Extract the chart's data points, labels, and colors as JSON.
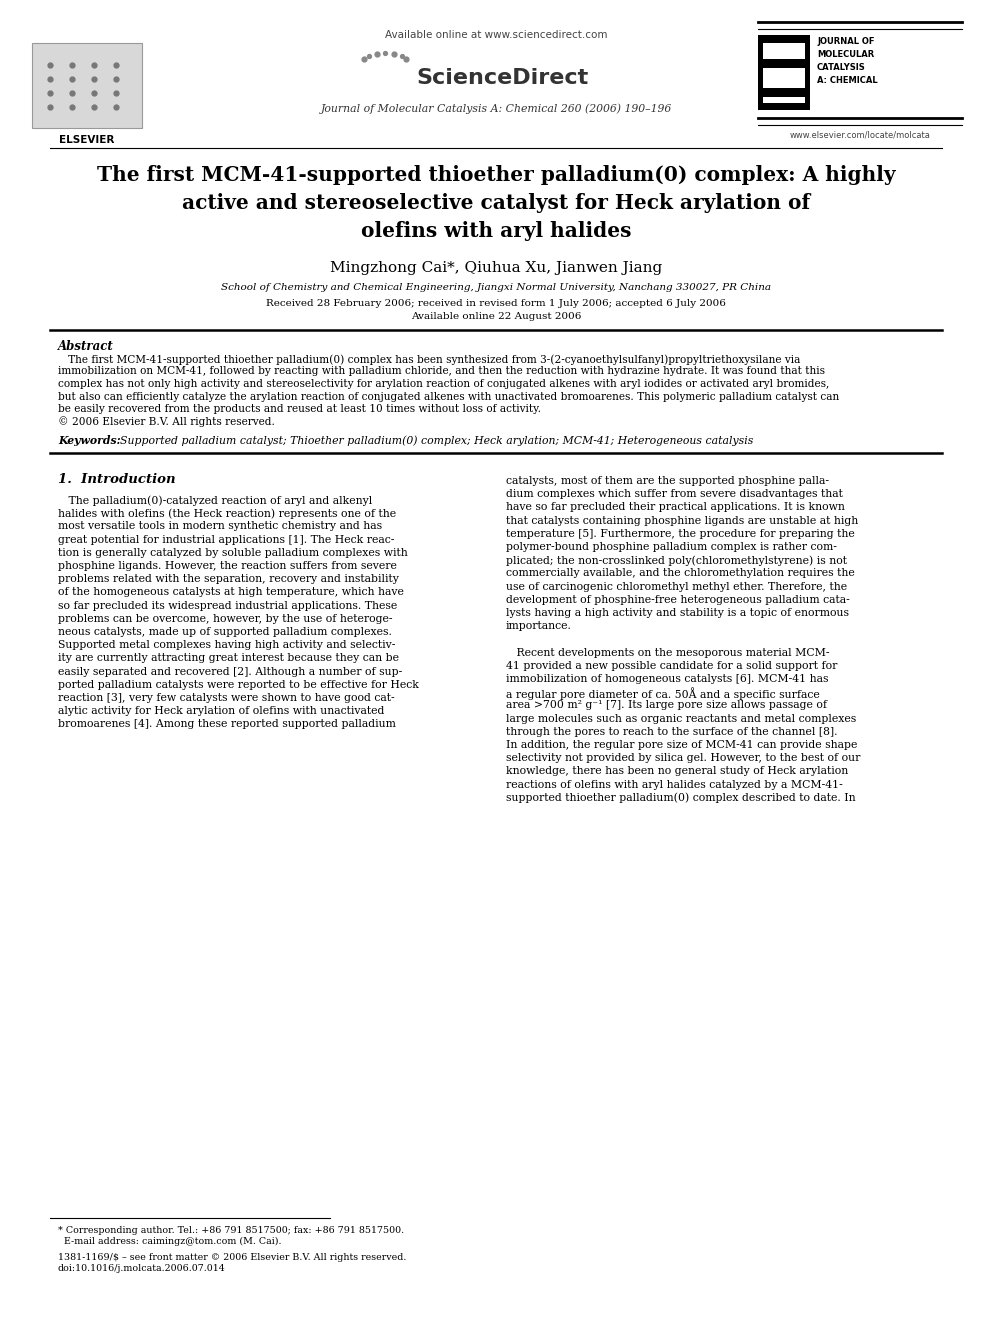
{
  "bg_color": "#ffffff",
  "available_text": "Available online at www.sciencedirect.com",
  "journal_info": "Journal of Molecular Catalysis A: Chemical 260 (2006) 190–196",
  "website": "www.elsevier.com/locate/molcata",
  "title_line1": "The first MCM-41-supported thioether palladium(0) complex: A highly",
  "title_line2": "active and stereoselective catalyst for Heck arylation of",
  "title_line3": "olefins with aryl halides",
  "authors": "Mingzhong Cai*, Qiuhua Xu, Jianwen Jiang",
  "affiliation": "School of Chemistry and Chemical Engineering, Jiangxi Normal University, Nanchang 330027, PR China",
  "dates_line1": "Received 28 February 2006; received in revised form 1 July 2006; accepted 6 July 2006",
  "dates_line2": "Available online 22 August 2006",
  "abstract_title": "Abstract",
  "abstract_lines": [
    "   The first MCM-41-supported thioether palladium(0) complex has been synthesized from 3-(2-cyanoethylsulfanyl)propyltriethoxysilane via",
    "immobilization on MCM-41, followed by reacting with palladium chloride, and then the reduction with hydrazine hydrate. It was found that this",
    "complex has not only high activity and stereoselectivity for arylation reaction of conjugated alkenes with aryl iodides or activated aryl bromides,",
    "but also can efficiently catalyze the arylation reaction of conjugated alkenes with unactivated bromoarenes. This polymeric palladium catalyst can",
    "be easily recovered from the products and reused at least 10 times without loss of activity.",
    "© 2006 Elsevier B.V. All rights reserved."
  ],
  "keywords_label": "Keywords:",
  "keywords": "  Supported palladium catalyst; Thioether palladium(0) complex; Heck arylation; MCM-41; Heterogeneous catalysis",
  "section1_title": "1.  Introduction",
  "left_col_lines": [
    "   The palladium(0)-catalyzed reaction of aryl and alkenyl",
    "halides with olefins (the Heck reaction) represents one of the",
    "most versatile tools in modern synthetic chemistry and has",
    "great potential for industrial applications [1]. The Heck reac-",
    "tion is generally catalyzed by soluble palladium complexes with",
    "phosphine ligands. However, the reaction suffers from severe",
    "problems related with the separation, recovery and instability",
    "of the homogeneous catalysts at high temperature, which have",
    "so far precluded its widespread industrial applications. These",
    "problems can be overcome, however, by the use of heteroge-",
    "neous catalysts, made up of supported palladium complexes.",
    "Supported metal complexes having high activity and selectiv-",
    "ity are currently attracting great interest because they can be",
    "easily separated and recovered [2]. Although a number of sup-",
    "ported palladium catalysts were reported to be effective for Heck",
    "reaction [3], very few catalysts were shown to have good cat-",
    "alytic activity for Heck arylation of olefins with unactivated",
    "bromoarenes [4]. Among these reported supported palladium"
  ],
  "right_col_lines": [
    "catalysts, most of them are the supported phosphine palla-",
    "dium complexes which suffer from severe disadvantages that",
    "have so far precluded their practical applications. It is known",
    "that catalysts containing phosphine ligands are unstable at high",
    "temperature [5]. Furthermore, the procedure for preparing the",
    "polymer-bound phosphine palladium complex is rather com-",
    "plicated; the non-crosslinked poly(chloromethylstyrene) is not",
    "commercially available, and the chloromethylation requires the",
    "use of carcinogenic chloromethyl methyl ether. Therefore, the",
    "development of phosphine-free heterogeneous palladium cata-",
    "lysts having a high activity and stability is a topic of enormous",
    "importance.",
    "",
    "   Recent developments on the mesoporous material MCM-",
    "41 provided a new possible candidate for a solid support for",
    "immobilization of homogeneous catalysts [6]. MCM-41 has",
    "a regular pore diameter of ca. 50Å and a specific surface",
    "area >700 m² g⁻¹ [7]. Its large pore size allows passage of",
    "large molecules such as organic reactants and metal complexes",
    "through the pores to reach to the surface of the channel [8].",
    "In addition, the regular pore size of MCM-41 can provide shape",
    "selectivity not provided by silica gel. However, to the best of our",
    "knowledge, there has been no general study of Heck arylation",
    "reactions of olefins with aryl halides catalyzed by a MCM-41-",
    "supported thioether palladium(0) complex described to date. In"
  ],
  "footnote_line": "* Corresponding author. Tel.: +86 791 8517500; fax: +86 791 8517500.",
  "footnote_email": "  E-mail address: caimingz@tom.com (M. Cai).",
  "issn_line1": "1381-1169/$ – see front matter © 2006 Elsevier B.V. All rights reserved.",
  "issn_line2": "doi:10.1016/j.molcata.2006.07.014"
}
